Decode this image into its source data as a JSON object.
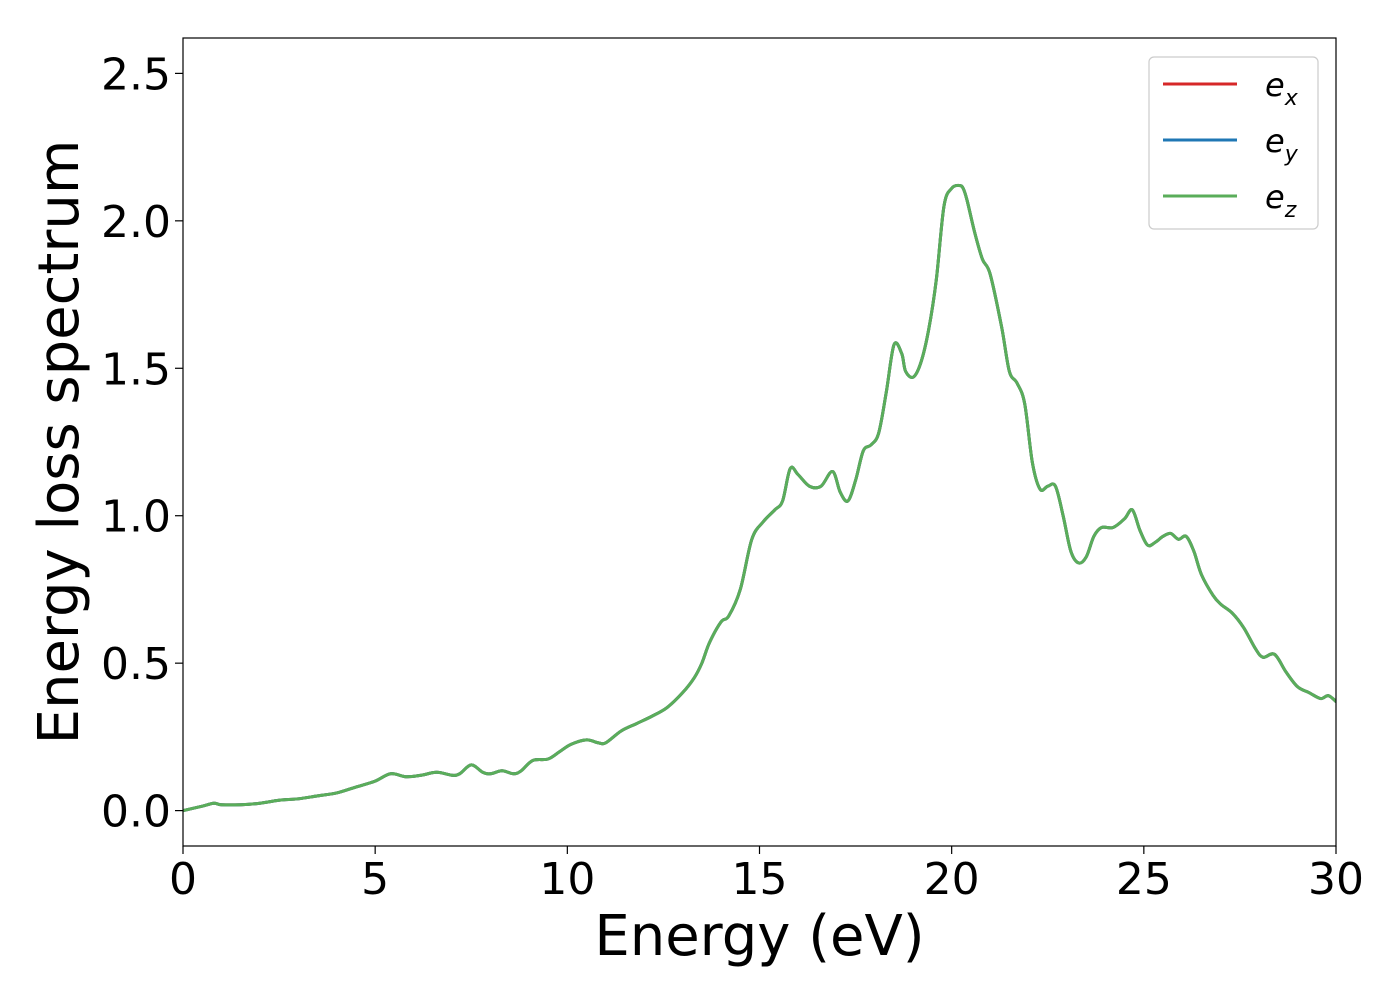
{
  "chart_data": {
    "type": "line",
    "title": "",
    "xlabel": "Energy (eV)",
    "ylabel": "Energy loss spectrum",
    "xlim": [
      0,
      30
    ],
    "ylim": [
      -0.12,
      2.62
    ],
    "xticks": [
      0,
      5,
      10,
      15,
      20,
      25,
      30
    ],
    "xtick_labels": [
      "0",
      "5",
      "10",
      "15",
      "20",
      "25",
      "30"
    ],
    "yticks": [
      0.0,
      0.5,
      1.0,
      1.5,
      2.0,
      2.5
    ],
    "ytick_labels": [
      "0.0",
      "0.5",
      "1.0",
      "1.5",
      "2.0",
      "2.5"
    ],
    "grid": false,
    "legend_position": "top-right",
    "x": [
      0,
      0.5,
      0.8,
      1.0,
      1.5,
      2.0,
      2.5,
      3.0,
      3.5,
      4.0,
      4.5,
      5.0,
      5.4,
      5.8,
      6.2,
      6.6,
      7.0,
      7.2,
      7.5,
      7.8,
      8.0,
      8.3,
      8.6,
      8.8,
      9.1,
      9.5,
      9.8,
      10.1,
      10.5,
      10.8,
      11.0,
      11.4,
      11.8,
      12.2,
      12.6,
      13.0,
      13.3,
      13.5,
      13.7,
      14.0,
      14.2,
      14.5,
      14.8,
      15.1,
      15.4,
      15.6,
      15.8,
      16.0,
      16.3,
      16.6,
      16.9,
      17.1,
      17.3,
      17.5,
      17.7,
      17.9,
      18.1,
      18.3,
      18.5,
      18.7,
      18.8,
      19.0,
      19.2,
      19.4,
      19.6,
      19.8,
      20.0,
      20.2,
      20.3,
      20.4,
      20.6,
      20.8,
      21.0,
      21.3,
      21.5,
      21.7,
      21.9,
      22.1,
      22.3,
      22.5,
      22.7,
      22.9,
      23.1,
      23.3,
      23.5,
      23.7,
      23.9,
      24.2,
      24.5,
      24.7,
      24.9,
      25.1,
      25.3,
      25.5,
      25.7,
      25.9,
      26.1,
      26.3,
      26.5,
      26.8,
      27.0,
      27.3,
      27.6,
      27.9,
      28.1,
      28.4,
      28.7,
      29.0,
      29.3,
      29.6,
      29.8,
      30.0
    ],
    "series": [
      {
        "name": "e_x",
        "color": "#d62728",
        "values": [
          0.0,
          0.015,
          0.025,
          0.02,
          0.02,
          0.025,
          0.035,
          0.04,
          0.05,
          0.06,
          0.08,
          0.1,
          0.125,
          0.115,
          0.12,
          0.13,
          0.12,
          0.125,
          0.155,
          0.13,
          0.125,
          0.135,
          0.125,
          0.135,
          0.17,
          0.175,
          0.2,
          0.225,
          0.24,
          0.23,
          0.23,
          0.27,
          0.295,
          0.32,
          0.35,
          0.4,
          0.45,
          0.5,
          0.57,
          0.64,
          0.66,
          0.75,
          0.92,
          0.98,
          1.02,
          1.05,
          1.16,
          1.14,
          1.1,
          1.1,
          1.15,
          1.08,
          1.05,
          1.12,
          1.22,
          1.24,
          1.28,
          1.42,
          1.58,
          1.55,
          1.49,
          1.47,
          1.52,
          1.63,
          1.8,
          2.05,
          2.11,
          2.12,
          2.11,
          2.07,
          1.96,
          1.87,
          1.82,
          1.64,
          1.49,
          1.45,
          1.38,
          1.18,
          1.09,
          1.1,
          1.1,
          1.0,
          0.88,
          0.84,
          0.86,
          0.93,
          0.96,
          0.96,
          0.99,
          1.02,
          0.95,
          0.9,
          0.91,
          0.93,
          0.94,
          0.92,
          0.93,
          0.88,
          0.8,
          0.73,
          0.7,
          0.67,
          0.62,
          0.55,
          0.52,
          0.53,
          0.47,
          0.42,
          0.4,
          0.38,
          0.39,
          0.37
        ]
      },
      {
        "name": "e_y",
        "color": "#1f77b4",
        "values": [
          0.0,
          0.015,
          0.025,
          0.02,
          0.02,
          0.025,
          0.035,
          0.04,
          0.05,
          0.06,
          0.08,
          0.1,
          0.125,
          0.115,
          0.12,
          0.13,
          0.12,
          0.125,
          0.155,
          0.13,
          0.125,
          0.135,
          0.125,
          0.135,
          0.17,
          0.175,
          0.2,
          0.225,
          0.24,
          0.23,
          0.23,
          0.27,
          0.295,
          0.32,
          0.35,
          0.4,
          0.45,
          0.5,
          0.57,
          0.64,
          0.66,
          0.75,
          0.92,
          0.98,
          1.02,
          1.05,
          1.16,
          1.14,
          1.1,
          1.1,
          1.15,
          1.08,
          1.05,
          1.12,
          1.22,
          1.24,
          1.28,
          1.42,
          1.58,
          1.55,
          1.49,
          1.47,
          1.52,
          1.63,
          1.8,
          2.05,
          2.11,
          2.12,
          2.11,
          2.07,
          1.96,
          1.87,
          1.82,
          1.64,
          1.49,
          1.45,
          1.38,
          1.18,
          1.09,
          1.1,
          1.1,
          1.0,
          0.88,
          0.84,
          0.86,
          0.93,
          0.96,
          0.96,
          0.99,
          1.02,
          0.95,
          0.9,
          0.91,
          0.93,
          0.94,
          0.92,
          0.93,
          0.88,
          0.8,
          0.73,
          0.7,
          0.67,
          0.62,
          0.55,
          0.52,
          0.53,
          0.47,
          0.42,
          0.4,
          0.38,
          0.39,
          0.37
        ]
      },
      {
        "name": "e_z",
        "color": "#5aad5a",
        "values": [
          0.0,
          0.015,
          0.025,
          0.02,
          0.02,
          0.025,
          0.035,
          0.04,
          0.05,
          0.06,
          0.08,
          0.1,
          0.125,
          0.115,
          0.12,
          0.13,
          0.12,
          0.125,
          0.155,
          0.13,
          0.125,
          0.135,
          0.125,
          0.135,
          0.17,
          0.175,
          0.2,
          0.225,
          0.24,
          0.23,
          0.23,
          0.27,
          0.295,
          0.32,
          0.35,
          0.4,
          0.45,
          0.5,
          0.57,
          0.64,
          0.66,
          0.75,
          0.92,
          0.98,
          1.02,
          1.05,
          1.16,
          1.14,
          1.1,
          1.1,
          1.15,
          1.08,
          1.05,
          1.12,
          1.22,
          1.24,
          1.28,
          1.42,
          1.58,
          1.55,
          1.49,
          1.47,
          1.52,
          1.63,
          1.8,
          2.05,
          2.11,
          2.12,
          2.11,
          2.07,
          1.96,
          1.87,
          1.82,
          1.64,
          1.49,
          1.45,
          1.38,
          1.18,
          1.09,
          1.1,
          1.1,
          1.0,
          0.88,
          0.84,
          0.86,
          0.93,
          0.96,
          0.96,
          0.99,
          1.02,
          0.95,
          0.9,
          0.91,
          0.93,
          0.94,
          0.92,
          0.93,
          0.88,
          0.8,
          0.73,
          0.7,
          0.67,
          0.62,
          0.55,
          0.52,
          0.53,
          0.47,
          0.42,
          0.4,
          0.38,
          0.39,
          0.37
        ]
      }
    ],
    "legend": [
      {
        "base": "e",
        "sub": "x",
        "color": "#d62728"
      },
      {
        "base": "e",
        "sub": "y",
        "color": "#1f77b4"
      },
      {
        "base": "e",
        "sub": "z",
        "color": "#5aad5a"
      }
    ]
  }
}
